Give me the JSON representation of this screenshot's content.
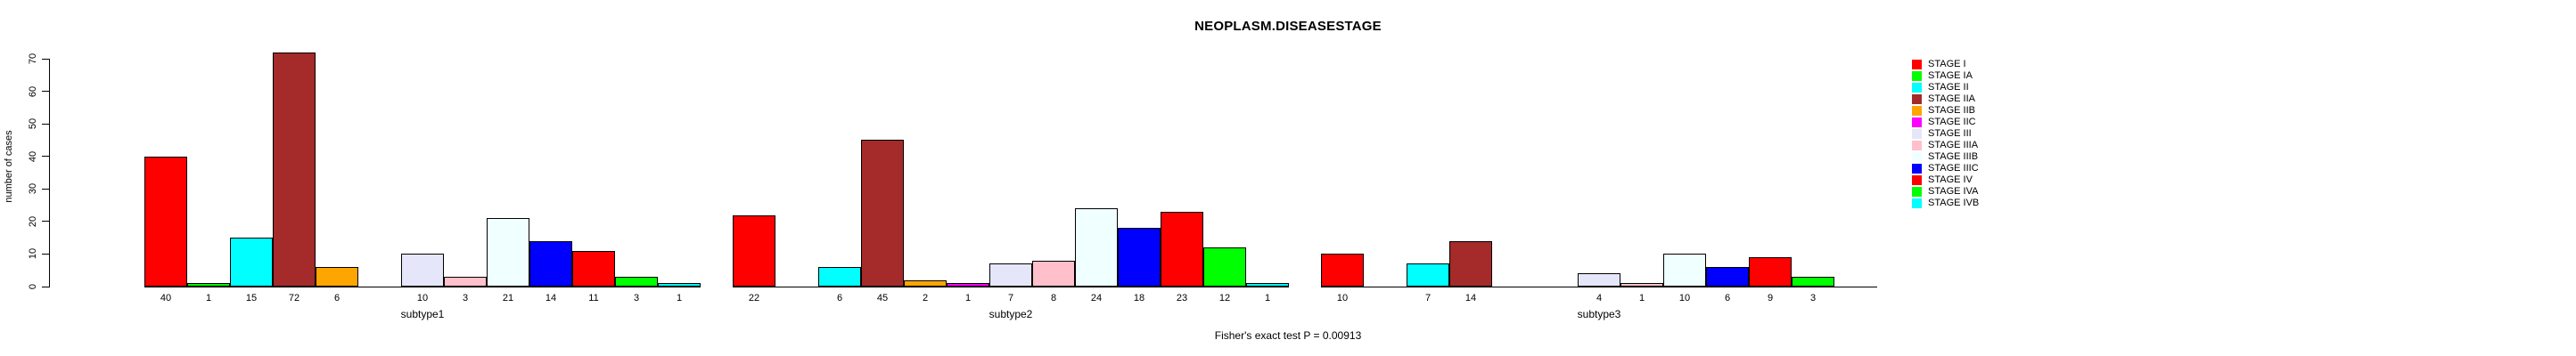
{
  "chart_data": {
    "type": "bar",
    "title": "NEOPLASM.DISEASESTAGE",
    "ylabel": "number of cases",
    "xlabel": "",
    "ylim": [
      0,
      70
    ],
    "yticks": [
      0,
      10,
      20,
      30,
      40,
      50,
      60,
      70
    ],
    "grid": false,
    "legend_position": "right",
    "annotation": "Fisher's exact test P = 0.00913",
    "stages": [
      {
        "label": "STAGE I",
        "color": "#FF0000"
      },
      {
        "label": "STAGE IA",
        "color": "#00FF00"
      },
      {
        "label": "STAGE II",
        "color": "#00FFFF"
      },
      {
        "label": "STAGE IIA",
        "color": "#A52A2A"
      },
      {
        "label": "STAGE IIB",
        "color": "#FFA500"
      },
      {
        "label": "STAGE IIC",
        "color": "#FF00FF"
      },
      {
        "label": "STAGE III",
        "color": "#E6E6FA"
      },
      {
        "label": "STAGE IIIA",
        "color": "#FFC0CB"
      },
      {
        "label": "STAGE IIIB",
        "color": "#F0FFFF"
      },
      {
        "label": "STAGE IIIC",
        "color": "#0000FF"
      },
      {
        "label": "STAGE IV",
        "color": "#FF0000"
      },
      {
        "label": "STAGE IVA",
        "color": "#00FF00"
      },
      {
        "label": "STAGE IVB",
        "color": "#00FFFF"
      }
    ],
    "groups": [
      {
        "label": "subtype1",
        "values": [
          40,
          1,
          15,
          72,
          6,
          0,
          10,
          3,
          21,
          14,
          11,
          3,
          1
        ]
      },
      {
        "label": "subtype2",
        "values": [
          22,
          0,
          6,
          45,
          2,
          1,
          7,
          8,
          24,
          18,
          23,
          12,
          1
        ]
      },
      {
        "label": "subtype3",
        "values": [
          10,
          0,
          7,
          14,
          0,
          0,
          4,
          1,
          10,
          6,
          9,
          3,
          0
        ]
      }
    ]
  }
}
